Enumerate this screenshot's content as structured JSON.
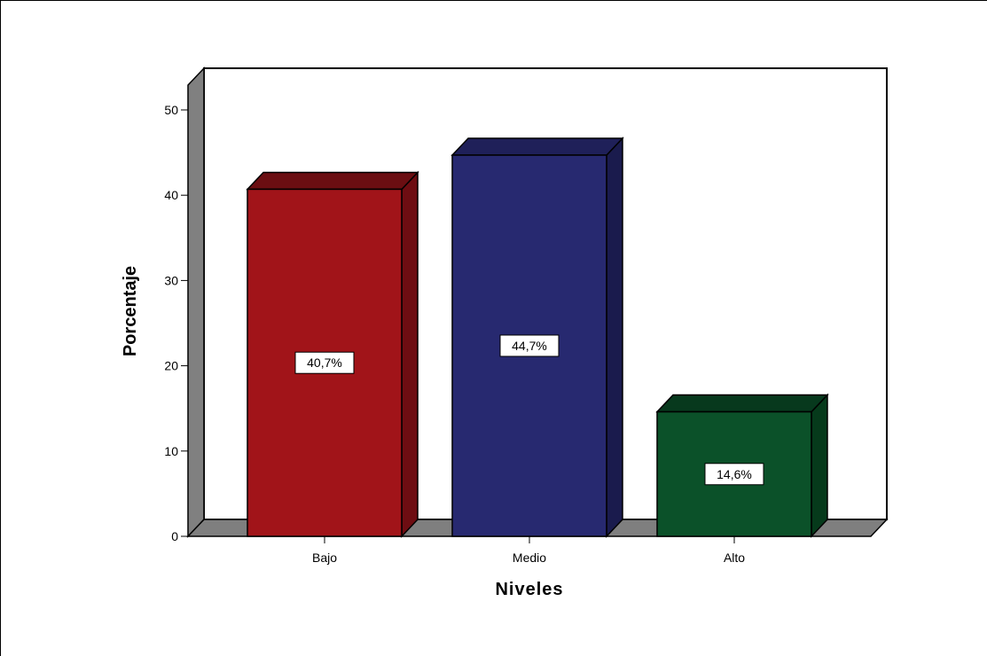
{
  "chart_data": {
    "type": "bar",
    "categories": [
      "Bajo",
      "Medio",
      "Alto"
    ],
    "values": [
      40.7,
      44.7,
      14.6
    ],
    "data_labels": [
      "40,7%",
      "44,7%",
      "14,6%"
    ],
    "xlabel": "Niveles",
    "ylabel": "Porcentaje",
    "ylim": [
      0,
      50
    ],
    "yticks": [
      0,
      10,
      20,
      30,
      40,
      50
    ],
    "grid": false,
    "legend": false,
    "style": "3d",
    "colors": {
      "Bajo": {
        "front": "#a11419",
        "side": "#6e0d12",
        "top": "#6b0e12"
      },
      "Medio": {
        "front": "#272970",
        "side": "#1a1b4d",
        "top": "#1f2059"
      },
      "Alto": {
        "front": "#0b5129",
        "side": "#063a1b",
        "top": "#07391d"
      },
      "wall_side": "#808080",
      "floor": "#7f7f7f"
    }
  }
}
